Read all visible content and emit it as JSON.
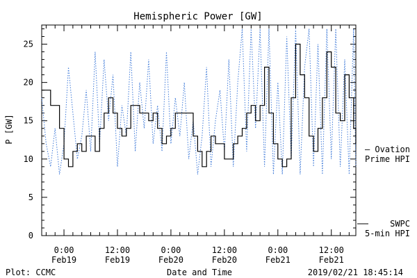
{
  "chart_data": {
    "type": "line",
    "title": "Hemispheric Power [GW]",
    "xlabel": "Date and Time",
    "ylabel": "P [GW]",
    "ylim": [
      0,
      27.5
    ],
    "yticks": [
      0,
      5,
      10,
      15,
      20,
      25
    ],
    "xlim": [
      "2019-02-18 19:00",
      "2019-02-21 17:30"
    ],
    "xticks": [
      {
        "time": "2019-02-19 00:00",
        "line1": "0:00",
        "line2": "Feb19"
      },
      {
        "time": "2019-02-19 12:00",
        "line1": "12:00",
        "line2": "Feb19"
      },
      {
        "time": "2019-02-20 00:00",
        "line1": "0:00",
        "line2": "Feb20"
      },
      {
        "time": "2019-02-20 12:00",
        "line1": "12:00",
        "line2": "Feb20"
      },
      {
        "time": "2019-02-21 00:00",
        "line1": "0:00",
        "line2": "Feb21"
      },
      {
        "time": "2019-02-21 12:00",
        "line1": "12:00",
        "line2": "Feb21"
      }
    ],
    "grid": false,
    "legend_placement": "right",
    "series": [
      {
        "name": "SWPC 5-min HPI",
        "label_lines": [
          "SWPC",
          "5-min HPI"
        ],
        "style": "solid",
        "color": "#000000",
        "points": [
          [
            "2019-02-18 19:00",
            19
          ],
          [
            "2019-02-18 20:00",
            19
          ],
          [
            "2019-02-18 21:00",
            17
          ],
          [
            "2019-02-18 22:00",
            17
          ],
          [
            "2019-02-18 23:00",
            14
          ],
          [
            "2019-02-19 00:00",
            10
          ],
          [
            "2019-02-19 01:00",
            9
          ],
          [
            "2019-02-19 02:00",
            11
          ],
          [
            "2019-02-19 03:00",
            12
          ],
          [
            "2019-02-19 04:00",
            11
          ],
          [
            "2019-02-19 05:00",
            13
          ],
          [
            "2019-02-19 06:00",
            13
          ],
          [
            "2019-02-19 07:00",
            11
          ],
          [
            "2019-02-19 08:00",
            14
          ],
          [
            "2019-02-19 09:00",
            16
          ],
          [
            "2019-02-19 10:00",
            18
          ],
          [
            "2019-02-19 11:00",
            16
          ],
          [
            "2019-02-19 12:00",
            14
          ],
          [
            "2019-02-19 13:00",
            13
          ],
          [
            "2019-02-19 14:00",
            14
          ],
          [
            "2019-02-19 15:00",
            17
          ],
          [
            "2019-02-19 16:00",
            17
          ],
          [
            "2019-02-19 17:00",
            16
          ],
          [
            "2019-02-19 18:00",
            16
          ],
          [
            "2019-02-19 19:00",
            15
          ],
          [
            "2019-02-19 20:00",
            16
          ],
          [
            "2019-02-19 21:00",
            14
          ],
          [
            "2019-02-19 22:00",
            12
          ],
          [
            "2019-02-19 23:00",
            13
          ],
          [
            "2019-02-20 00:00",
            14
          ],
          [
            "2019-02-20 01:00",
            16
          ],
          [
            "2019-02-20 02:00",
            16
          ],
          [
            "2019-02-20 03:00",
            16
          ],
          [
            "2019-02-20 04:00",
            16
          ],
          [
            "2019-02-20 05:00",
            13
          ],
          [
            "2019-02-20 06:00",
            11
          ],
          [
            "2019-02-20 07:00",
            9
          ],
          [
            "2019-02-20 08:00",
            11
          ],
          [
            "2019-02-20 09:00",
            13
          ],
          [
            "2019-02-20 10:00",
            12
          ],
          [
            "2019-02-20 11:00",
            12
          ],
          [
            "2019-02-20 12:00",
            10
          ],
          [
            "2019-02-20 13:00",
            10
          ],
          [
            "2019-02-20 14:00",
            12
          ],
          [
            "2019-02-20 15:00",
            13
          ],
          [
            "2019-02-20 16:00",
            14
          ],
          [
            "2019-02-20 17:00",
            16
          ],
          [
            "2019-02-20 18:00",
            17
          ],
          [
            "2019-02-20 19:00",
            15
          ],
          [
            "2019-02-20 20:00",
            17
          ],
          [
            "2019-02-20 21:00",
            22
          ],
          [
            "2019-02-20 22:00",
            16
          ],
          [
            "2019-02-20 23:00",
            12
          ],
          [
            "2019-02-21 00:00",
            10
          ],
          [
            "2019-02-21 01:00",
            9
          ],
          [
            "2019-02-21 02:00",
            10
          ],
          [
            "2019-02-21 03:00",
            18
          ],
          [
            "2019-02-21 04:00",
            25
          ],
          [
            "2019-02-21 05:00",
            21
          ],
          [
            "2019-02-21 06:00",
            18
          ],
          [
            "2019-02-21 07:00",
            13
          ],
          [
            "2019-02-21 08:00",
            11
          ],
          [
            "2019-02-21 09:00",
            14
          ],
          [
            "2019-02-21 10:00",
            18
          ],
          [
            "2019-02-21 11:00",
            24
          ],
          [
            "2019-02-21 12:00",
            22
          ],
          [
            "2019-02-21 13:00",
            16
          ],
          [
            "2019-02-21 14:00",
            15
          ],
          [
            "2019-02-21 15:00",
            21
          ],
          [
            "2019-02-21 16:00",
            18
          ],
          [
            "2019-02-21 17:00",
            14
          ],
          [
            "2019-02-21 17:30",
            12
          ]
        ]
      },
      {
        "name": "Ovation Prime HPI",
        "label_lines": [
          "— Ovation",
          "Prime HPI"
        ],
        "style": "dotted",
        "color": "#3c78d8",
        "points": [
          [
            "2019-02-18 19:00",
            18
          ],
          [
            "2019-02-18 20:00",
            12
          ],
          [
            "2019-02-18 21:00",
            9
          ],
          [
            "2019-02-18 22:00",
            14
          ],
          [
            "2019-02-18 23:00",
            8
          ],
          [
            "2019-02-19 00:00",
            12
          ],
          [
            "2019-02-19 01:00",
            22
          ],
          [
            "2019-02-19 02:00",
            16
          ],
          [
            "2019-02-19 03:00",
            10
          ],
          [
            "2019-02-19 04:00",
            13
          ],
          [
            "2019-02-19 05:00",
            19
          ],
          [
            "2019-02-19 06:00",
            11
          ],
          [
            "2019-02-19 07:00",
            24
          ],
          [
            "2019-02-19 08:00",
            12
          ],
          [
            "2019-02-19 09:00",
            23
          ],
          [
            "2019-02-19 10:00",
            15
          ],
          [
            "2019-02-19 11:00",
            21
          ],
          [
            "2019-02-19 12:00",
            9
          ],
          [
            "2019-02-19 13:00",
            17
          ],
          [
            "2019-02-19 14:00",
            13
          ],
          [
            "2019-02-19 15:00",
            24
          ],
          [
            "2019-02-19 16:00",
            11
          ],
          [
            "2019-02-19 17:00",
            20
          ],
          [
            "2019-02-19 18:00",
            14
          ],
          [
            "2019-02-19 19:00",
            23
          ],
          [
            "2019-02-19 20:00",
            12
          ],
          [
            "2019-02-19 21:00",
            17
          ],
          [
            "2019-02-19 22:00",
            11
          ],
          [
            "2019-02-19 23:00",
            24
          ],
          [
            "2019-02-20 00:00",
            12
          ],
          [
            "2019-02-20 01:00",
            18
          ],
          [
            "2019-02-20 02:00",
            13
          ],
          [
            "2019-02-20 03:00",
            20
          ],
          [
            "2019-02-20 04:00",
            10
          ],
          [
            "2019-02-20 05:00",
            15
          ],
          [
            "2019-02-20 06:00",
            8
          ],
          [
            "2019-02-20 07:00",
            13
          ],
          [
            "2019-02-20 08:00",
            22
          ],
          [
            "2019-02-20 09:00",
            9
          ],
          [
            "2019-02-20 10:00",
            15
          ],
          [
            "2019-02-20 11:00",
            19
          ],
          [
            "2019-02-20 12:00",
            11
          ],
          [
            "2019-02-20 13:00",
            23
          ],
          [
            "2019-02-20 14:00",
            9
          ],
          [
            "2019-02-20 15:00",
            20
          ],
          [
            "2019-02-20 16:00",
            27
          ],
          [
            "2019-02-20 17:00",
            11
          ],
          [
            "2019-02-20 18:00",
            27
          ],
          [
            "2019-02-20 19:00",
            14
          ],
          [
            "2019-02-20 20:00",
            27
          ],
          [
            "2019-02-20 21:00",
            9
          ],
          [
            "2019-02-20 22:00",
            27
          ],
          [
            "2019-02-20 23:00",
            8
          ],
          [
            "2019-02-21 00:00",
            20
          ],
          [
            "2019-02-21 01:00",
            8
          ],
          [
            "2019-02-21 02:00",
            26
          ],
          [
            "2019-02-21 03:00",
            10
          ],
          [
            "2019-02-21 04:00",
            27
          ],
          [
            "2019-02-21 05:00",
            8
          ],
          [
            "2019-02-21 06:00",
            22
          ],
          [
            "2019-02-21 07:00",
            27
          ],
          [
            "2019-02-21 08:00",
            9
          ],
          [
            "2019-02-21 09:00",
            25
          ],
          [
            "2019-02-21 10:00",
            8
          ],
          [
            "2019-02-21 11:00",
            27
          ],
          [
            "2019-02-21 12:00",
            10
          ],
          [
            "2019-02-21 13:00",
            27
          ],
          [
            "2019-02-21 14:00",
            9
          ],
          [
            "2019-02-21 15:00",
            23
          ],
          [
            "2019-02-21 16:00",
            8
          ],
          [
            "2019-02-21 17:00",
            27
          ],
          [
            "2019-02-21 17:30",
            9
          ]
        ]
      }
    ]
  },
  "footer": {
    "left": "Plot: CCMC",
    "center": "Date and Time",
    "right": "2019/02/21 18:45:14"
  }
}
